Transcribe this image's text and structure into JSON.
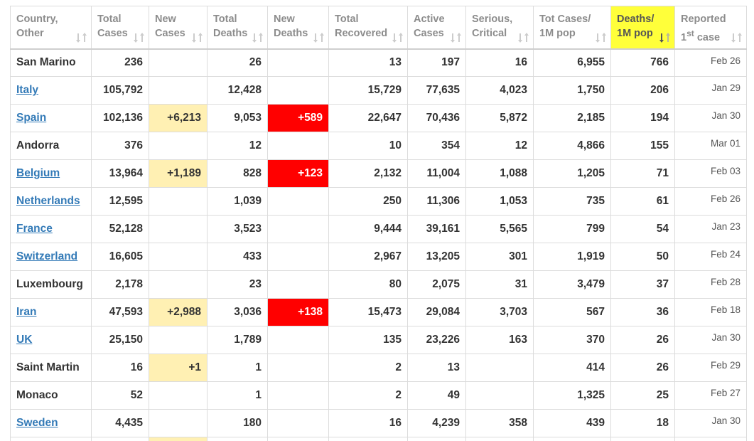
{
  "columns": [
    {
      "label": "Country,\nOther"
    },
    {
      "label": "Total\nCases"
    },
    {
      "label": "New\nCases"
    },
    {
      "label": "Total\nDeaths"
    },
    {
      "label": "New\nDeaths"
    },
    {
      "label": "Total\nRecovered"
    },
    {
      "label": "Active\nCases"
    },
    {
      "label": "Serious,\nCritical"
    },
    {
      "label": "Tot Cases/\n1M pop"
    },
    {
      "label": "Deaths/\n1M pop",
      "highlighted": true
    },
    {
      "label_main": "Reported",
      "label_sup_prefix": "1",
      "label_sup": "st",
      "label_tail": " case"
    }
  ],
  "colors": {
    "highlight_header": "#ffff3a",
    "new_cases_bg": "#fff0b3",
    "new_deaths_bg": "#ff0000",
    "link": "#337ab7"
  },
  "rows": [
    {
      "country": "San Marino",
      "link": false,
      "total_cases": "236",
      "new_cases": "",
      "total_deaths": "26",
      "new_deaths": "",
      "total_recovered": "13",
      "active_cases": "197",
      "serious_critical": "16",
      "tot_cases_1m": "6,955",
      "deaths_1m": "766",
      "first_case": "Feb 26"
    },
    {
      "country": "Italy",
      "link": true,
      "total_cases": "105,792",
      "new_cases": "",
      "total_deaths": "12,428",
      "new_deaths": "",
      "total_recovered": "15,729",
      "active_cases": "77,635",
      "serious_critical": "4,023",
      "tot_cases_1m": "1,750",
      "deaths_1m": "206",
      "first_case": "Jan 29"
    },
    {
      "country": "Spain",
      "link": true,
      "total_cases": "102,136",
      "new_cases": "+6,213",
      "total_deaths": "9,053",
      "new_deaths": "+589",
      "total_recovered": "22,647",
      "active_cases": "70,436",
      "serious_critical": "5,872",
      "tot_cases_1m": "2,185",
      "deaths_1m": "194",
      "first_case": "Jan 30"
    },
    {
      "country": "Andorra",
      "link": false,
      "total_cases": "376",
      "new_cases": "",
      "total_deaths": "12",
      "new_deaths": "",
      "total_recovered": "10",
      "active_cases": "354",
      "serious_critical": "12",
      "tot_cases_1m": "4,866",
      "deaths_1m": "155",
      "first_case": "Mar 01"
    },
    {
      "country": "Belgium",
      "link": true,
      "total_cases": "13,964",
      "new_cases": "+1,189",
      "total_deaths": "828",
      "new_deaths": "+123",
      "total_recovered": "2,132",
      "active_cases": "11,004",
      "serious_critical": "1,088",
      "tot_cases_1m": "1,205",
      "deaths_1m": "71",
      "first_case": "Feb 03"
    },
    {
      "country": "Netherlands",
      "link": true,
      "total_cases": "12,595",
      "new_cases": "",
      "total_deaths": "1,039",
      "new_deaths": "",
      "total_recovered": "250",
      "active_cases": "11,306",
      "serious_critical": "1,053",
      "tot_cases_1m": "735",
      "deaths_1m": "61",
      "first_case": "Feb 26"
    },
    {
      "country": "France",
      "link": true,
      "total_cases": "52,128",
      "new_cases": "",
      "total_deaths": "3,523",
      "new_deaths": "",
      "total_recovered": "9,444",
      "active_cases": "39,161",
      "serious_critical": "5,565",
      "tot_cases_1m": "799",
      "deaths_1m": "54",
      "first_case": "Jan 23"
    },
    {
      "country": "Switzerland",
      "link": true,
      "total_cases": "16,605",
      "new_cases": "",
      "total_deaths": "433",
      "new_deaths": "",
      "total_recovered": "2,967",
      "active_cases": "13,205",
      "serious_critical": "301",
      "tot_cases_1m": "1,919",
      "deaths_1m": "50",
      "first_case": "Feb 24"
    },
    {
      "country": "Luxembourg",
      "link": false,
      "total_cases": "2,178",
      "new_cases": "",
      "total_deaths": "23",
      "new_deaths": "",
      "total_recovered": "80",
      "active_cases": "2,075",
      "serious_critical": "31",
      "tot_cases_1m": "3,479",
      "deaths_1m": "37",
      "first_case": "Feb 28"
    },
    {
      "country": "Iran",
      "link": true,
      "total_cases": "47,593",
      "new_cases": "+2,988",
      "total_deaths": "3,036",
      "new_deaths": "+138",
      "total_recovered": "15,473",
      "active_cases": "29,084",
      "serious_critical": "3,703",
      "tot_cases_1m": "567",
      "deaths_1m": "36",
      "first_case": "Feb 18"
    },
    {
      "country": "UK",
      "link": true,
      "total_cases": "25,150",
      "new_cases": "",
      "total_deaths": "1,789",
      "new_deaths": "",
      "total_recovered": "135",
      "active_cases": "23,226",
      "serious_critical": "163",
      "tot_cases_1m": "370",
      "deaths_1m": "26",
      "first_case": "Jan 30"
    },
    {
      "country": "Saint Martin",
      "link": false,
      "total_cases": "16",
      "new_cases": "+1",
      "total_deaths": "1",
      "new_deaths": "",
      "total_recovered": "2",
      "active_cases": "13",
      "serious_critical": "",
      "tot_cases_1m": "414",
      "deaths_1m": "26",
      "first_case": "Feb 29"
    },
    {
      "country": "Monaco",
      "link": false,
      "total_cases": "52",
      "new_cases": "",
      "total_deaths": "1",
      "new_deaths": "",
      "total_recovered": "2",
      "active_cases": "49",
      "serious_critical": "",
      "tot_cases_1m": "1,325",
      "deaths_1m": "25",
      "first_case": "Feb 27"
    },
    {
      "country": "Sweden",
      "link": true,
      "total_cases": "4,435",
      "new_cases": "",
      "total_deaths": "180",
      "new_deaths": "",
      "total_recovered": "16",
      "active_cases": "4,239",
      "serious_critical": "358",
      "tot_cases_1m": "439",
      "deaths_1m": "18",
      "first_case": "Jan 30"
    }
  ],
  "partial_row": {
    "new_cases_highlight": true
  }
}
